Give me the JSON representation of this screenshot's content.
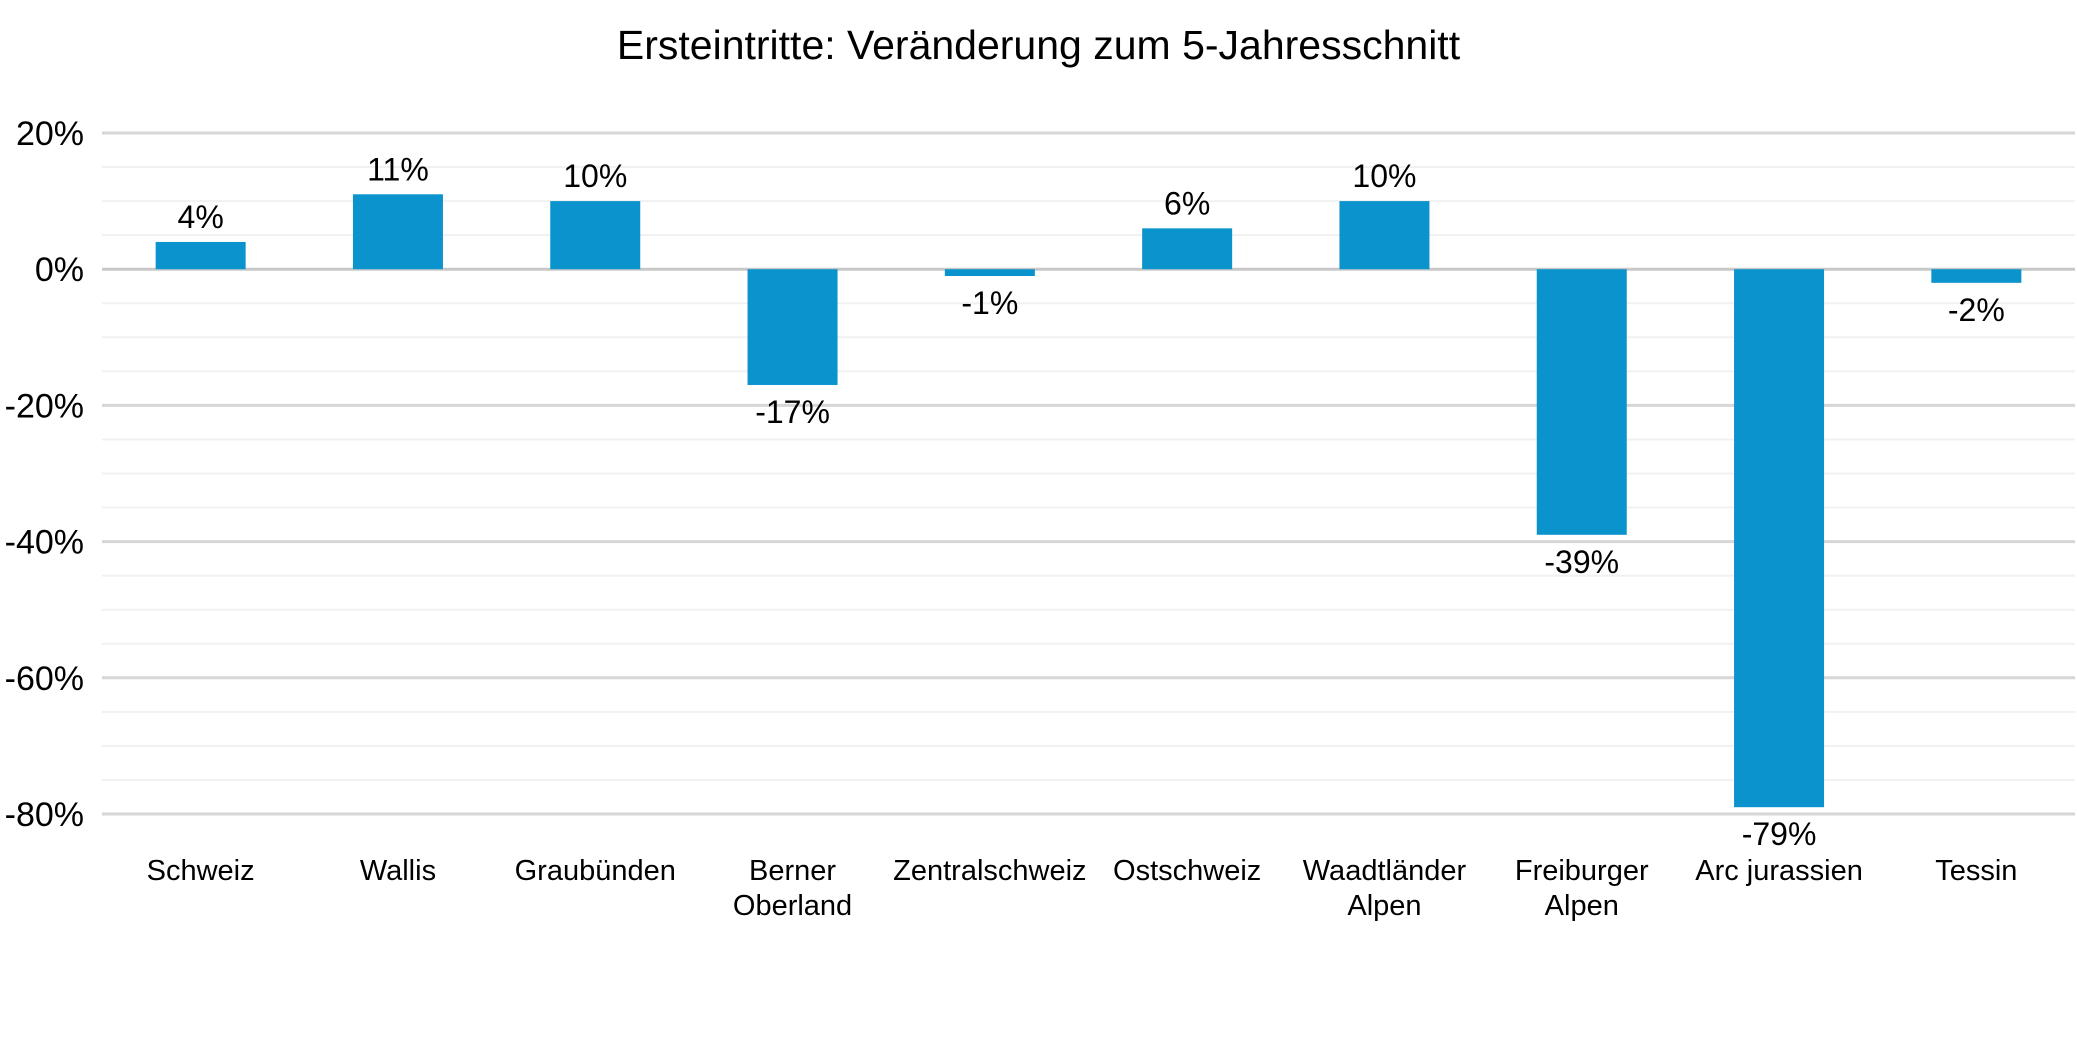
{
  "chart_data": {
    "type": "bar",
    "title": "Ersteintritte: Veränderung zum 5-Jahresschnitt",
    "categories": [
      "Schweiz",
      "Wallis",
      "Graubünden",
      "Berner Oberland",
      "Zentralschweiz",
      "Ostschweiz",
      "Waadtländer Alpen",
      "Freiburger Alpen",
      "Arc jurassien",
      "Tessin"
    ],
    "categories_display": [
      [
        "Schweiz"
      ],
      [
        "Wallis"
      ],
      [
        "Graubünden"
      ],
      [
        "Berner",
        "Oberland"
      ],
      [
        "Zentralschweiz"
      ],
      [
        "Ostschweiz"
      ],
      [
        "Waadtländer",
        "Alpen"
      ],
      [
        "Freiburger",
        "Alpen"
      ],
      [
        "Arc jurassien"
      ],
      [
        "Tessin"
      ]
    ],
    "values": [
      4,
      11,
      10,
      -17,
      -1,
      6,
      10,
      -39,
      -79,
      -2
    ],
    "data_labels": [
      "4%",
      "11%",
      "10%",
      "-17%",
      "-1%",
      "6%",
      "10%",
      "-39%",
      "-79%",
      "-2%"
    ],
    "xlabel": "",
    "ylabel": "",
    "ylim": [
      -80,
      20
    ],
    "y_tick_values": [
      20,
      0,
      -20,
      -40,
      -60,
      -80
    ],
    "y_tick_labels": [
      "20%",
      "0%",
      "-20%",
      "-40%",
      "-60%",
      "-80%"
    ],
    "minor_grid_step": 5,
    "major_grid_step": 20,
    "grid": "on",
    "legend": "none",
    "colors": {
      "bar": "#0a93cd",
      "major_gridline": "#d6d6d6",
      "minor_gridline": "#f1f1f1",
      "zero_line": "#c8c8c8",
      "text": "#000000",
      "background": "#ffffff"
    }
  }
}
